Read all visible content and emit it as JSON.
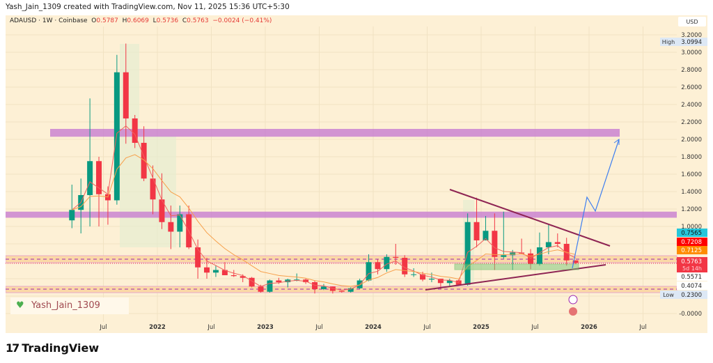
{
  "credit": "Yash_Jain_1309 created with TradingView.com, Nov 11, 2025 15:36 UTC+5:30",
  "legend": {
    "symbol": "ADAUSD · 1W · Coinbase",
    "o": "0.5787",
    "h": "0.6069",
    "l": "0.5736",
    "c": "0.5763",
    "chg": "−0.0024 (−0.41%)"
  },
  "currency": "USD",
  "watermark": "Yash_Jain_1309",
  "brand": "TradingView",
  "colors": {
    "up": "#089981",
    "down": "#f23645",
    "bg": "#fdf0d5",
    "zone": "#c77dd1",
    "projection": "#3d7ef0",
    "trend": "#8e2453",
    "box": "#7cc576"
  },
  "chart_data": {
    "type": "candlestick",
    "title": "ADAUSD · 1W · Coinbase",
    "ylim": [
      -0.05,
      3.25
    ],
    "grid": true,
    "y_ticks": [
      "3.2000",
      "3.0000",
      "2.8000",
      "2.6000",
      "2.4000",
      "2.2000",
      "2.0000",
      "1.8000",
      "1.6000",
      "1.4000",
      "1.2000",
      "1.0000",
      "-0.0000"
    ],
    "x_ticks": [
      "Jul",
      "2022",
      "Jul",
      "2023",
      "Jul",
      "2024",
      "Jul",
      "2025",
      "Jul",
      "2026",
      "Jul"
    ],
    "price_labels": [
      {
        "label": "High",
        "value": "3.0994"
      },
      {
        "value": "0.7565",
        "color": "#26c6da"
      },
      {
        "value": "0.7208",
        "color": "#ff0000"
      },
      {
        "value": "0.7125",
        "color": "#ff8c00"
      },
      {
        "value": "0.5763",
        "sub": "5d 14h",
        "color": "#f23645"
      },
      {
        "value": "0.5571"
      },
      {
        "value": "0.4074"
      },
      {
        "label": "Low",
        "value": "0.2300"
      }
    ],
    "zones": [
      [
        2.03,
        2.12
      ],
      [
        1.1,
        1.17
      ]
    ],
    "candles_monthly": [
      [
        "2021-03",
        1.07,
        1.48,
        0.98,
        1.19
      ],
      [
        "2021-04",
        1.19,
        1.55,
        0.92,
        1.36
      ],
      [
        "2021-05",
        1.36,
        2.47,
        1.0,
        1.75
      ],
      [
        "2021-06",
        1.75,
        1.8,
        1.0,
        1.37
      ],
      [
        "2021-07",
        1.37,
        1.46,
        1.02,
        1.3
      ],
      [
        "2021-08",
        1.3,
        2.97,
        1.25,
        2.77
      ],
      [
        "2021-09",
        2.77,
        3.1,
        1.95,
        2.24
      ],
      [
        "2021-10",
        2.24,
        2.28,
        1.9,
        1.96
      ],
      [
        "2021-11",
        1.96,
        2.15,
        1.52,
        1.55
      ],
      [
        "2021-12",
        1.55,
        1.7,
        1.14,
        1.31
      ],
      [
        "2022-01",
        1.31,
        1.61,
        0.97,
        1.05
      ],
      [
        "2022-02",
        1.05,
        1.24,
        0.74,
        0.94
      ],
      [
        "2022-03",
        0.94,
        1.24,
        0.76,
        1.14
      ],
      [
        "2022-04",
        1.14,
        1.24,
        0.74,
        0.76
      ],
      [
        "2022-05",
        0.76,
        0.85,
        0.4,
        0.53
      ],
      [
        "2022-06",
        0.53,
        0.64,
        0.4,
        0.47
      ],
      [
        "2022-07",
        0.47,
        0.55,
        0.42,
        0.5
      ],
      [
        "2022-08",
        0.5,
        0.59,
        0.44,
        0.44
      ],
      [
        "2022-09",
        0.44,
        0.5,
        0.42,
        0.43
      ],
      [
        "2022-10",
        0.43,
        0.45,
        0.36,
        0.41
      ],
      [
        "2022-11",
        0.41,
        0.42,
        0.3,
        0.31
      ],
      [
        "2022-12",
        0.31,
        0.33,
        0.24,
        0.25
      ],
      [
        "2023-01",
        0.25,
        0.39,
        0.24,
        0.38
      ],
      [
        "2023-02",
        0.38,
        0.41,
        0.34,
        0.36
      ],
      [
        "2023-03",
        0.36,
        0.4,
        0.3,
        0.39
      ],
      [
        "2023-04",
        0.39,
        0.46,
        0.37,
        0.39
      ],
      [
        "2023-05",
        0.39,
        0.4,
        0.34,
        0.36
      ],
      [
        "2023-06",
        0.36,
        0.38,
        0.23,
        0.28
      ],
      [
        "2023-07",
        0.28,
        0.34,
        0.27,
        0.31
      ],
      [
        "2023-08",
        0.31,
        0.31,
        0.23,
        0.26
      ],
      [
        "2023-09",
        0.26,
        0.26,
        0.24,
        0.25
      ],
      [
        "2023-10",
        0.25,
        0.3,
        0.24,
        0.29
      ],
      [
        "2023-11",
        0.29,
        0.4,
        0.28,
        0.38
      ],
      [
        "2023-12",
        0.38,
        0.68,
        0.37,
        0.59
      ],
      [
        "2024-01",
        0.59,
        0.62,
        0.45,
        0.51
      ],
      [
        "2024-02",
        0.51,
        0.68,
        0.48,
        0.65
      ],
      [
        "2024-03",
        0.65,
        0.8,
        0.56,
        0.64
      ],
      [
        "2024-04",
        0.64,
        0.67,
        0.42,
        0.45
      ],
      [
        "2024-05",
        0.45,
        0.52,
        0.42,
        0.45
      ],
      [
        "2024-06",
        0.45,
        0.48,
        0.37,
        0.39
      ],
      [
        "2024-07",
        0.39,
        0.47,
        0.36,
        0.4
      ],
      [
        "2024-08",
        0.4,
        0.4,
        0.28,
        0.35
      ],
      [
        "2024-09",
        0.35,
        0.4,
        0.32,
        0.38
      ],
      [
        "2024-10",
        0.38,
        0.39,
        0.32,
        0.33
      ],
      [
        "2024-11",
        0.33,
        1.15,
        0.32,
        1.05
      ],
      [
        "2024-12",
        1.05,
        1.33,
        0.76,
        0.84
      ],
      [
        "2025-01",
        0.84,
        1.12,
        0.85,
        0.95
      ],
      [
        "2025-02",
        0.95,
        1.15,
        0.5,
        0.65
      ],
      [
        "2025-03",
        0.65,
        1.17,
        0.63,
        0.67
      ],
      [
        "2025-04",
        0.67,
        0.73,
        0.5,
        0.7
      ],
      [
        "2025-05",
        0.7,
        0.86,
        0.68,
        0.69
      ],
      [
        "2025-06",
        0.69,
        0.74,
        0.51,
        0.57
      ],
      [
        "2025-07",
        0.57,
        0.93,
        0.55,
        0.76
      ],
      [
        "2025-08",
        0.76,
        1.02,
        0.68,
        0.82
      ],
      [
        "2025-09",
        0.82,
        0.92,
        0.76,
        0.8
      ],
      [
        "2025-10",
        0.8,
        0.87,
        0.55,
        0.61
      ],
      [
        "2025-11",
        0.61,
        0.61,
        0.57,
        0.58
      ]
    ]
  }
}
